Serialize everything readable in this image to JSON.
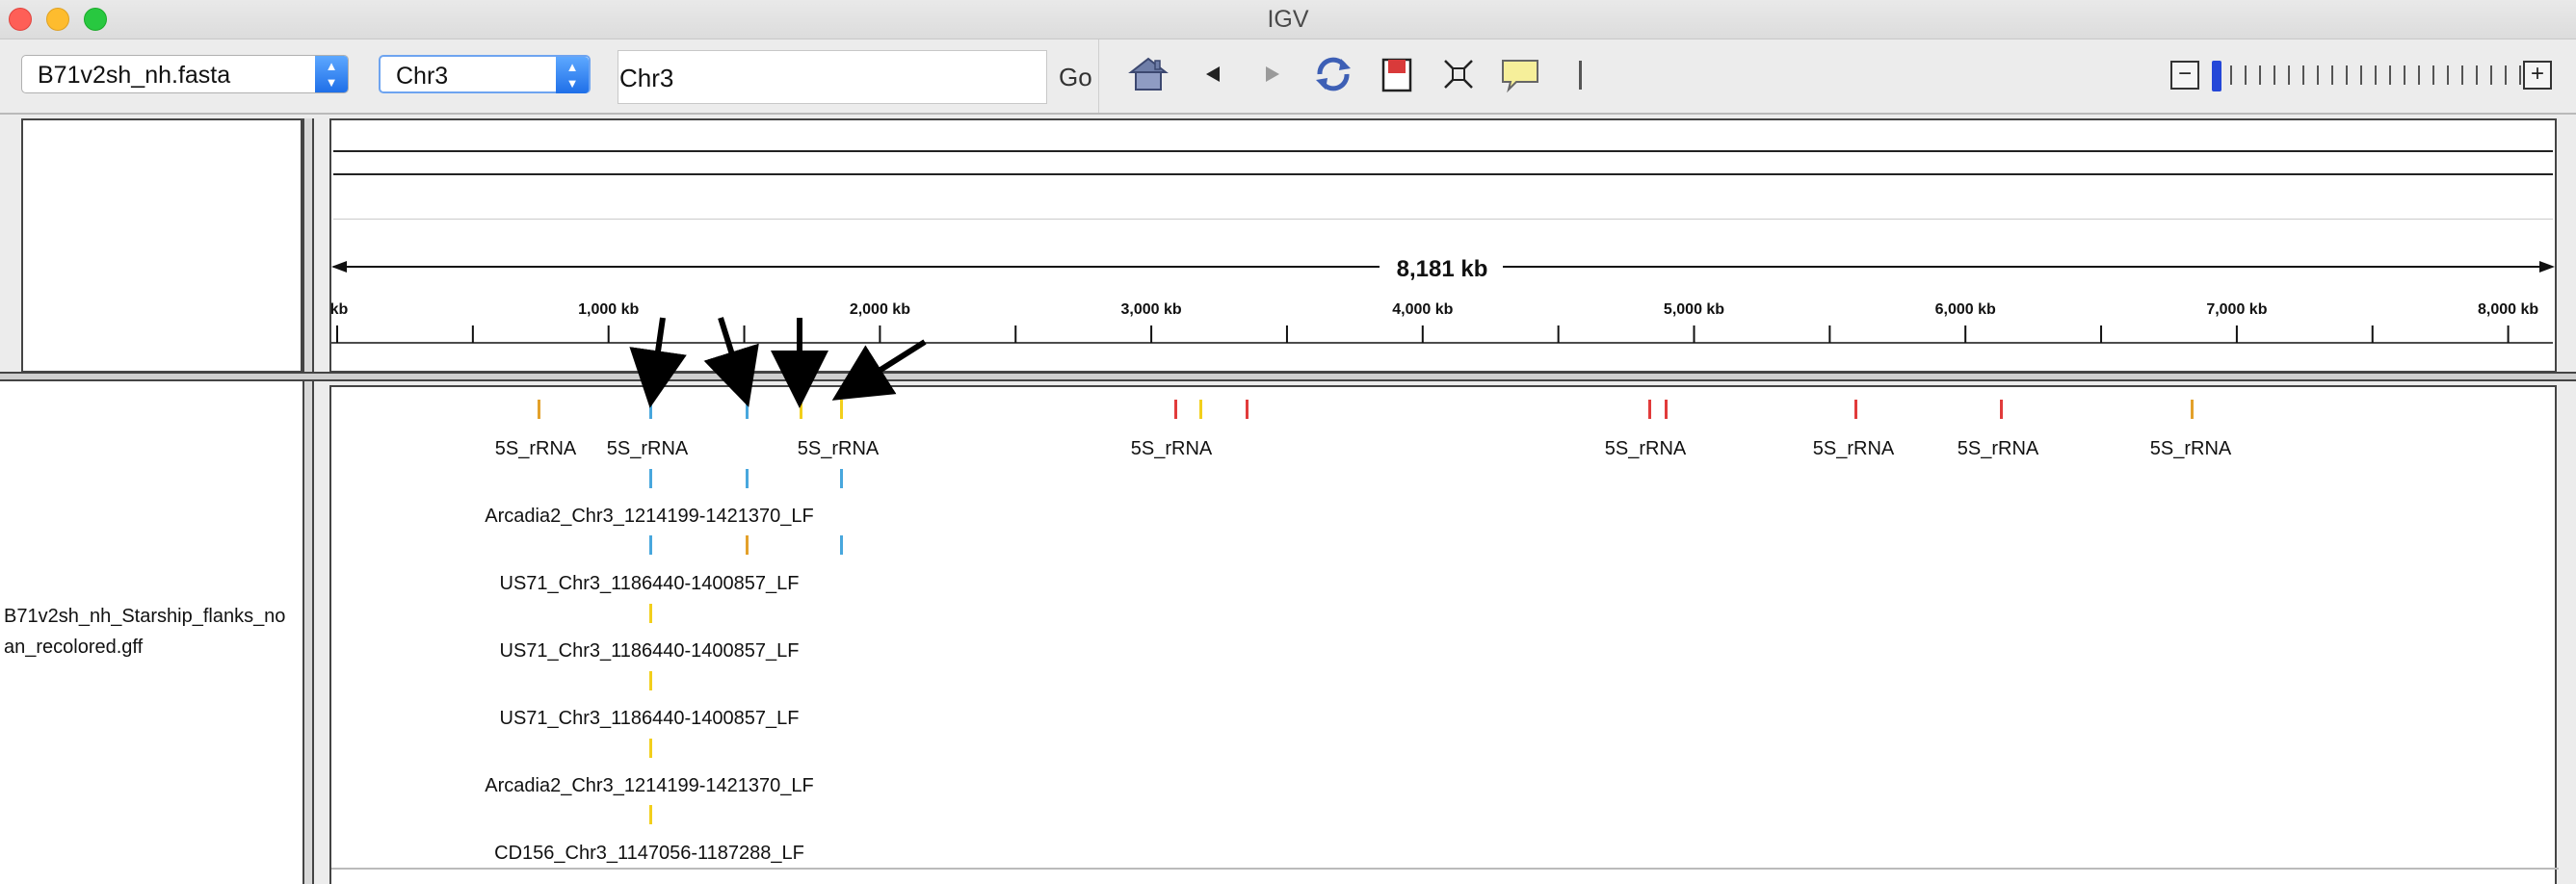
{
  "window": {
    "title": "IGV"
  },
  "colors": {
    "red": "#e13b3b",
    "yellow": "#f2cf1c",
    "orange": "#e3a12b",
    "blue": "#48a7dd",
    "zoom_thumb": "#2447d8"
  },
  "toolbar": {
    "genome_select": {
      "value": "B71v2sh_nh.fasta"
    },
    "chrom_select": {
      "value": "Chr3"
    },
    "locus_input": {
      "value": "Chr3"
    },
    "go_label": "Go",
    "icons": [
      "home-icon",
      "back-icon",
      "forward-icon",
      "refresh-icon",
      "roi-icon",
      "resize-icon",
      "popup-info-icon"
    ],
    "zoom": {
      "minus": "−",
      "plus": "+",
      "level_fraction": 0.0
    }
  },
  "ruler": {
    "span_label": "8,181 kb",
    "tick_labels": [
      "kb",
      "1,000 kb",
      "2,000 kb",
      "3,000 kb",
      "4,000 kb",
      "5,000 kb",
      "6,000 kb",
      "7,000 kb",
      "8,000 kb"
    ]
  },
  "track": {
    "name_line1": "B71v2sh_nh_Starship_flanks_no",
    "name_line2": "an_recolored.gff",
    "row1_labels": [
      "5S_rRNA",
      "5S_rRNA",
      "5S_rRNA",
      "5S_rRNA",
      "5S_rRNA",
      "5S_rRNA",
      "5S_rRNA",
      "5S_rRNA"
    ],
    "row_labels": [
      "Arcadia2_Chr3_1214199-1421370_LF",
      "US71_Chr3_1186440-1400857_LF",
      "US71_Chr3_1186440-1400857_LF",
      "US71_Chr3_1186440-1400857_LF",
      "Arcadia2_Chr3_1214199-1421370_LF",
      "CD156_Chr3_1147056-1187288_LF"
    ]
  }
}
